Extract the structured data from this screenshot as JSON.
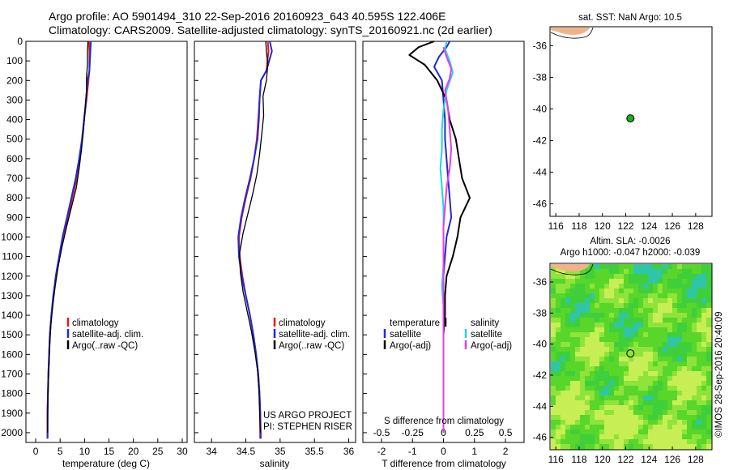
{
  "header": {
    "line1": "Argo profile: AO 5901494_310 22-Sep-2016 20160923_643 40.595S 122.406E",
    "line2": "Climatology: CARS2009. Satellite-adjusted climatology: synTS_20160921.nc (2d earlier)"
  },
  "colors": {
    "climatology": "#e41a1c",
    "satellite": "#1f2bd6",
    "argo": "#000000",
    "sat_salinity": "#22d3e6",
    "argo_salinity": "#e83ce8",
    "land": "#f0b48a",
    "float_marker": "#22aa22"
  },
  "chart_data": [
    {
      "type": "line",
      "id": "temperature-profile",
      "xlabel": "temperature (deg C)",
      "xlim": [
        -2,
        31
      ],
      "ylim": [
        2050,
        0
      ],
      "xticks": [
        0,
        5,
        10,
        15,
        20,
        25,
        30
      ],
      "yticks": [
        0,
        100,
        200,
        300,
        400,
        500,
        600,
        700,
        800,
        900,
        1000,
        1100,
        1200,
        1300,
        1400,
        1500,
        1600,
        1700,
        1800,
        1900,
        2000
      ],
      "legend": [
        "climatology",
        "satellite-adj. clim.",
        "Argo(..raw -QC)"
      ],
      "series": [
        {
          "name": "climatology",
          "color": "#e41a1c",
          "width": 2,
          "x": [
            10.9,
            11.0,
            11.0,
            10.8,
            10.4,
            9.9,
            9.5,
            9.0,
            8.4,
            7.5,
            6.6,
            5.7,
            4.9,
            4.2,
            3.6,
            3.2,
            2.9,
            2.75,
            2.6,
            2.5,
            2.4,
            2.4
          ],
          "y": [
            0,
            50,
            150,
            200,
            300,
            400,
            500,
            600,
            700,
            800,
            900,
            1000,
            1100,
            1200,
            1300,
            1400,
            1500,
            1600,
            1700,
            1800,
            1900,
            2030
          ]
        },
        {
          "name": "satellite-adj. clim.",
          "color": "#1f2bd6",
          "width": 2,
          "x": [
            11.3,
            11.2,
            11.0,
            10.6,
            10.3,
            9.9,
            9.5,
            8.9,
            8.2,
            7.3,
            6.4,
            5.5,
            4.8,
            4.1,
            3.6,
            3.2,
            2.9,
            2.75,
            2.6,
            2.5,
            2.45,
            2.45
          ],
          "y": [
            0,
            50,
            150,
            200,
            300,
            400,
            500,
            600,
            700,
            800,
            900,
            1000,
            1100,
            1200,
            1300,
            1400,
            1500,
            1600,
            1700,
            1800,
            1900,
            2030
          ]
        },
        {
          "name": "Argo(..raw -QC)",
          "color": "#000000",
          "width": 1.3,
          "x": [
            10.7,
            10.6,
            10.6,
            10.4,
            10.4,
            10.1,
            9.8,
            9.4,
            8.9,
            8.3,
            7.3,
            6.3,
            5.4,
            4.6,
            4.0,
            3.5,
            3.1,
            2.9,
            2.75,
            2.6,
            2.5,
            2.45,
            2.45
          ],
          "y": [
            0,
            60,
            120,
            180,
            250,
            350,
            450,
            550,
            650,
            750,
            850,
            950,
            1050,
            1150,
            1250,
            1350,
            1450,
            1550,
            1650,
            1750,
            1850,
            1950,
            2000
          ]
        }
      ]
    },
    {
      "type": "line",
      "id": "salinity-profile",
      "xlabel": "salinity",
      "xlim": [
        33.75,
        36.1
      ],
      "ylim": [
        2050,
        0
      ],
      "xticks": [
        34,
        34.5,
        35,
        35.5,
        36
      ],
      "xticklabels": [
        "34",
        "34.5",
        "35",
        "35.5",
        "36"
      ],
      "legend": [
        "climatology",
        "satellite-adj. clim.",
        "Argo(..raw -QC)"
      ],
      "annotation": [
        "US ARGO PROJECT",
        "PI: STEPHEN RISER"
      ],
      "series": [
        {
          "name": "climatology",
          "color": "#e41a1c",
          "width": 2,
          "x": [
            34.82,
            34.83,
            34.8,
            34.72,
            34.7,
            34.68,
            34.66,
            34.62,
            34.57,
            34.5,
            34.44,
            34.4,
            34.41,
            34.45,
            34.5,
            34.56,
            34.61,
            34.65,
            34.68,
            34.7,
            34.71,
            34.72
          ],
          "y": [
            0,
            50,
            150,
            200,
            300,
            400,
            500,
            600,
            700,
            800,
            900,
            1000,
            1100,
            1200,
            1300,
            1400,
            1500,
            1600,
            1700,
            1800,
            1900,
            2030
          ]
        },
        {
          "name": "satellite-adj. clim.",
          "color": "#1f2bd6",
          "width": 2,
          "x": [
            34.85,
            34.88,
            34.8,
            34.72,
            34.7,
            34.69,
            34.67,
            34.62,
            34.56,
            34.49,
            34.43,
            34.39,
            34.4,
            34.44,
            34.5,
            34.56,
            34.61,
            34.65,
            34.68,
            34.7,
            34.71,
            34.71
          ],
          "y": [
            0,
            50,
            150,
            200,
            300,
            400,
            500,
            600,
            700,
            800,
            900,
            1000,
            1100,
            1200,
            1300,
            1400,
            1500,
            1600,
            1700,
            1800,
            1900,
            2030
          ]
        },
        {
          "name": "Argo(..raw -QC)",
          "color": "#000000",
          "width": 1.3,
          "x": [
            34.79,
            34.8,
            34.82,
            34.8,
            34.75,
            34.76,
            34.73,
            34.7,
            34.66,
            34.6,
            34.53,
            34.46,
            34.41,
            34.42,
            34.46,
            34.52,
            34.58,
            34.63,
            34.67,
            34.69,
            34.7,
            34.71
          ],
          "y": [
            0,
            50,
            120,
            200,
            280,
            380,
            480,
            580,
            680,
            780,
            880,
            980,
            1080,
            1180,
            1280,
            1380,
            1480,
            1580,
            1680,
            1780,
            1880,
            2000
          ]
        }
      ]
    },
    {
      "type": "line",
      "id": "difference-profile",
      "xlabel": "T difference from climatology",
      "xlim": [
        -2.6,
        2.6
      ],
      "ylim": [
        2050,
        0
      ],
      "xticks": [
        -2,
        -1,
        0,
        1,
        2
      ],
      "top_axis_label": "S difference from climatology",
      "top_ticks": [
        -0.5,
        -0.25,
        0,
        0.25,
        0.5
      ],
      "top_ticklabels": [
        "-0.5",
        "-0.25",
        "0",
        "0.25",
        "0.5"
      ],
      "top_scale": 4,
      "legend_groups": [
        {
          "title": "temperature",
          "items": [
            "satellite",
            "Argo(-adj)"
          ]
        },
        {
          "title": "salinity",
          "items": [
            "satellite",
            "Argo(-adj)"
          ]
        }
      ],
      "series": [
        {
          "name": "temperature satellite",
          "color": "#1f2bd6",
          "width": 2,
          "x": [
            0.2,
            0.1,
            -0.15,
            -0.3,
            -0.05,
            0.0,
            0.05,
            0.05,
            0.1,
            0.15,
            0.2,
            0.25,
            0.1,
            0.05,
            0.0,
            0.0,
            0.0,
            0.0,
            0.0,
            0.0,
            0.0,
            0.0
          ],
          "y": [
            0,
            30,
            80,
            130,
            200,
            300,
            400,
            500,
            600,
            700,
            800,
            900,
            1000,
            1100,
            1200,
            1300,
            1400,
            1500,
            1600,
            1700,
            1800,
            2000
          ]
        },
        {
          "name": "temperature Argo(-adj)",
          "color": "#000000",
          "width": 2,
          "x": [
            -0.3,
            -0.8,
            -1.1,
            -0.6,
            -0.2,
            0.1,
            0.2,
            0.4,
            0.5,
            0.6,
            0.85,
            0.55,
            0.45,
            0.3,
            0.1,
            0.05,
            0.05,
            0.0,
            0.0,
            0.0,
            0.0
          ],
          "y": [
            0,
            30,
            70,
            120,
            200,
            300,
            400,
            500,
            600,
            700,
            800,
            900,
            1000,
            1100,
            1200,
            1300,
            1400,
            1500,
            1600,
            1800,
            2000
          ]
        },
        {
          "name": "salinity satellite",
          "color": "#22d3e6",
          "width": 2,
          "x": [
            0.1,
            0.05,
            0.2,
            0.3,
            0.1,
            0.0,
            -0.05,
            -0.05,
            -0.1,
            -0.05,
            0.0,
            0.0,
            0.0,
            0.0,
            -0.05,
            0.0,
            0.0,
            0.0,
            0.0,
            0.0,
            0.0
          ],
          "y": [
            0,
            40,
            100,
            160,
            250,
            350,
            450,
            550,
            650,
            750,
            850,
            950,
            1050,
            1150,
            1250,
            1350,
            1450,
            1550,
            1650,
            1800,
            2000
          ]
        },
        {
          "name": "salinity Argo(-adj)",
          "color": "#e83ce8",
          "width": 2,
          "x": [
            0.0,
            0.1,
            0.25,
            0.2,
            0.05,
            0.15,
            0.2,
            0.25,
            0.2,
            0.1,
            0.05,
            0.0,
            0.0,
            0.0,
            0.0,
            0.0,
            0.0,
            0.0
          ],
          "y": [
            30,
            80,
            140,
            190,
            250,
            350,
            450,
            550,
            650,
            750,
            850,
            950,
            1100,
            1250,
            1400,
            1600,
            1800,
            2000
          ]
        }
      ]
    },
    {
      "type": "scatter",
      "id": "sst-map",
      "title": "sat. SST: NaN Argo: 10.5",
      "xlim": [
        115.5,
        129.4
      ],
      "ylim": [
        -46.8,
        -34.8
      ],
      "xticks": [
        116,
        118,
        120,
        122,
        124,
        126,
        128
      ],
      "yticks": [
        -36,
        -38,
        -40,
        -42,
        -44,
        -46
      ],
      "points": [
        {
          "x": 122.4,
          "y": -40.6
        }
      ]
    },
    {
      "type": "heatmap",
      "id": "sla-map",
      "title": [
        "Altim. SLA: -0.0026",
        "Argo h1000: -0.047 h2000: -0.039"
      ],
      "xlim": [
        115.5,
        129.4
      ],
      "ylim": [
        -46.8,
        -34.8
      ],
      "xticks": [
        116,
        118,
        120,
        122,
        124,
        126,
        128
      ],
      "yticks": [
        -36,
        -38,
        -40,
        -42,
        -44,
        -46
      ],
      "points": [
        {
          "x": 122.4,
          "y": -40.6
        }
      ],
      "side_label": "©IMOS 28-Sep-2016 20:40:09"
    }
  ]
}
